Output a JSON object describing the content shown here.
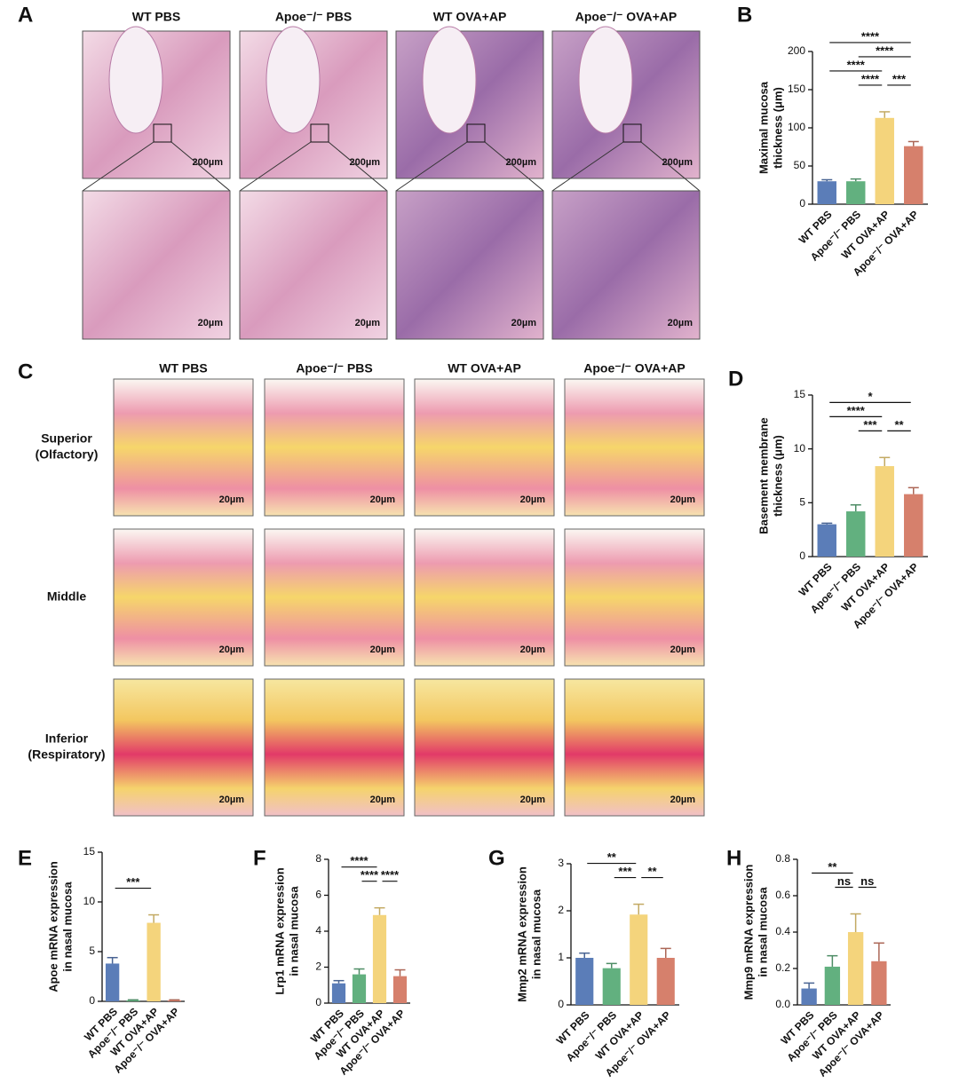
{
  "panel_labels": [
    "A",
    "B",
    "C",
    "D",
    "E",
    "F",
    "G",
    "H"
  ],
  "panel_a": {
    "columns": [
      "WT PBS",
      "Apoe⁻/⁻ PBS",
      "WT OVA+AP",
      "Apoe⁻/⁻ OVA+AP"
    ],
    "scale_low": "200µm",
    "scale_high": "20µm"
  },
  "panel_c": {
    "columns": [
      "WT PBS",
      "Apoe⁻/⁻ PBS",
      "WT OVA+AP",
      "Apoe⁻/⁻ OVA+AP"
    ],
    "rows": [
      [
        "Superior",
        "(Olfactory)"
      ],
      [
        "Middle"
      ],
      [
        "Inferior",
        "(Respiratory)"
      ]
    ],
    "scale": "20µm"
  },
  "chart_data": [
    {
      "type": "bar",
      "ylabel": [
        "Maximal mucosa",
        "thickness (μm)"
      ],
      "categories": [
        "WT PBS",
        "Apoe⁻/⁻ PBS",
        "WT OVA+AP",
        "Apoe⁻/⁻ OVA+AP"
      ],
      "colors": [
        "#5b7db8",
        "#62b07f",
        "#f4d47c",
        "#d6806c"
      ],
      "values": [
        30,
        30,
        113,
        76
      ],
      "errors": [
        2,
        3,
        8,
        6
      ],
      "ylim": [
        0,
        200
      ],
      "yticks": [
        0,
        50,
        100,
        150,
        200
      ],
      "annotations": [
        {
          "text": "****",
          "from": 0,
          "to": 3
        },
        {
          "text": "****",
          "from": 1,
          "to": 3
        },
        {
          "text": "****",
          "from": 0,
          "to": 2
        },
        {
          "text": "****",
          "from": 1,
          "to": 2
        },
        {
          "text": "***",
          "from": 2,
          "to": 3
        }
      ]
    },
    {
      "type": "bar",
      "ylabel": [
        "Basement membrane",
        "thickness (μm)"
      ],
      "categories": [
        "WT PBS",
        "Apoe⁻/⁻ PBS",
        "WT OVA+AP",
        "Apoe⁻/⁻ OVA+AP"
      ],
      "colors": [
        "#5b7db8",
        "#62b07f",
        "#f4d47c",
        "#d6806c"
      ],
      "values": [
        3.0,
        4.2,
        8.4,
        5.8
      ],
      "errors": [
        0.1,
        0.6,
        0.8,
        0.6
      ],
      "ylim": [
        0,
        15
      ],
      "yticks": [
        0,
        5,
        10,
        15
      ],
      "annotations": [
        {
          "text": "*",
          "from": 0,
          "to": 3
        },
        {
          "text": "****",
          "from": 0,
          "to": 2
        },
        {
          "text": "***",
          "from": 1,
          "to": 2
        },
        {
          "text": "**",
          "from": 2,
          "to": 3
        }
      ]
    },
    {
      "type": "bar",
      "ylabel": [
        "Apoe mRNA expression",
        "in nasal mucosa"
      ],
      "categories": [
        "WT PBS",
        "Apoe⁻/⁻ PBS",
        "WT OVA+AP",
        "Apoe⁻/⁻ OVA+AP"
      ],
      "colors": [
        "#5b7db8",
        "#62b07f",
        "#f4d47c",
        "#d6806c"
      ],
      "values": [
        3.8,
        0.1,
        7.9,
        0.1
      ],
      "errors": [
        0.6,
        0.05,
        0.8,
        0.05
      ],
      "ylim": [
        0,
        15
      ],
      "yticks": [
        0,
        5,
        10,
        15
      ],
      "annotations": [
        {
          "text": "***",
          "from": 0,
          "to": 2
        }
      ]
    },
    {
      "type": "bar",
      "ylabel": [
        "Lrp1 mRNA expression",
        "in nasal mucosa"
      ],
      "categories": [
        "WT PBS",
        "Apoe⁻/⁻ PBS",
        "WT OVA+AP",
        "Apoe⁻/⁻ OVA+AP"
      ],
      "colors": [
        "#5b7db8",
        "#62b07f",
        "#f4d47c",
        "#d6806c"
      ],
      "values": [
        1.1,
        1.6,
        4.9,
        1.5
      ],
      "errors": [
        0.15,
        0.3,
        0.4,
        0.35
      ],
      "ylim": [
        0,
        8
      ],
      "yticks": [
        0,
        2,
        4,
        6,
        8
      ],
      "annotations": [
        {
          "text": "****",
          "from": 0,
          "to": 2
        },
        {
          "text": "****",
          "from": 1,
          "to": 2
        },
        {
          "text": "****",
          "from": 2,
          "to": 3
        }
      ]
    },
    {
      "type": "bar",
      "ylabel": [
        "Mmp2 mRNA expression",
        "in nasal mucosa"
      ],
      "categories": [
        "WT PBS",
        "Apoe⁻/⁻ PBS",
        "WT OVA+AP",
        "Apoe⁻/⁻ OVA+AP"
      ],
      "colors": [
        "#5b7db8",
        "#62b07f",
        "#f4d47c",
        "#d6806c"
      ],
      "values": [
        1.0,
        0.78,
        1.92,
        1.0
      ],
      "errors": [
        0.1,
        0.1,
        0.22,
        0.2
      ],
      "ylim": [
        0,
        3
      ],
      "yticks": [
        0,
        1,
        2,
        3
      ],
      "annotations": [
        {
          "text": "**",
          "from": 0,
          "to": 2
        },
        {
          "text": "***",
          "from": 1,
          "to": 2
        },
        {
          "text": "**",
          "from": 2,
          "to": 3
        }
      ]
    },
    {
      "type": "bar",
      "ylabel": [
        "Mmp9 mRNA expression",
        "in nasal mucosa"
      ],
      "categories": [
        "WT PBS",
        "Apoe⁻/⁻ PBS",
        "WT OVA+AP",
        "Apoe⁻/⁻ OVA+AP"
      ],
      "colors": [
        "#5b7db8",
        "#62b07f",
        "#f4d47c",
        "#d6806c"
      ],
      "values": [
        0.09,
        0.21,
        0.4,
        0.24
      ],
      "errors": [
        0.03,
        0.06,
        0.1,
        0.1
      ],
      "ylim": [
        0,
        0.8
      ],
      "yticks": [
        {
          "value": 0,
          "label": "0.0"
        },
        0.2,
        0.4,
        0.6,
        0.8
      ],
      "annotations": [
        {
          "text": "**",
          "from": 0,
          "to": 2
        },
        {
          "text": "ns",
          "from": 1,
          "to": 2
        },
        {
          "text": "ns",
          "from": 2,
          "to": 3
        }
      ]
    }
  ]
}
